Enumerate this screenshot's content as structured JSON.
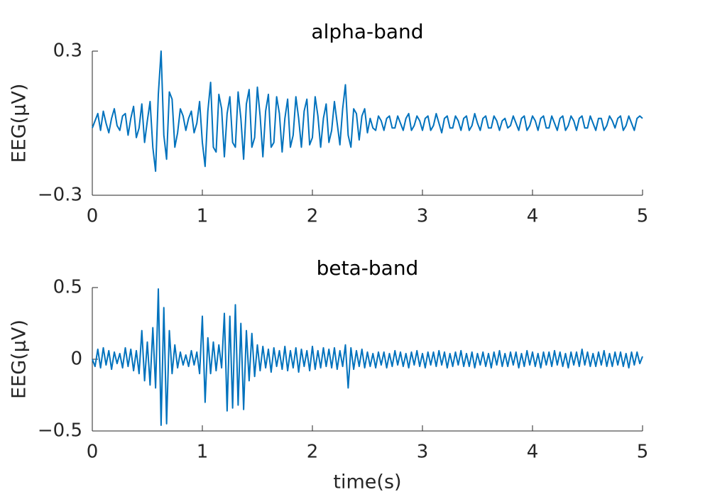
{
  "chart_data": [
    {
      "type": "line",
      "title": "alpha-band",
      "ylabel": "EEG(μV)",
      "color": "#0072bd",
      "xlim": [
        0,
        5
      ],
      "xticks": [
        0,
        1,
        2,
        3,
        4,
        5
      ],
      "ylim": [
        -0.3,
        0.3
      ],
      "yticks": [
        {
          "value": -0.3,
          "label": "−0.3"
        },
        0.3
      ],
      "x": [
        0,
        0.025,
        0.05,
        0.075,
        0.1,
        0.125,
        0.15,
        0.175,
        0.2,
        0.225,
        0.25,
        0.275,
        0.3,
        0.325,
        0.35,
        0.375,
        0.4,
        0.425,
        0.45,
        0.475,
        0.5,
        0.525,
        0.55,
        0.575,
        0.6,
        0.625,
        0.65,
        0.675,
        0.7,
        0.725,
        0.75,
        0.775,
        0.8,
        0.825,
        0.85,
        0.875,
        0.9,
        0.925,
        0.95,
        0.975,
        1,
        1.025,
        1.05,
        1.075,
        1.1,
        1.125,
        1.15,
        1.175,
        1.2,
        1.225,
        1.25,
        1.275,
        1.3,
        1.325,
        1.35,
        1.375,
        1.4,
        1.425,
        1.45,
        1.475,
        1.5,
        1.525,
        1.55,
        1.575,
        1.6,
        1.625,
        1.65,
        1.675,
        1.7,
        1.725,
        1.75,
        1.775,
        1.8,
        1.825,
        1.85,
        1.875,
        1.9,
        1.925,
        1.95,
        1.975,
        2,
        2.025,
        2.05,
        2.075,
        2.1,
        2.125,
        2.15,
        2.175,
        2.2,
        2.225,
        2.25,
        2.275,
        2.3,
        2.325,
        2.35,
        2.375,
        2.4,
        2.425,
        2.45,
        2.475,
        2.5,
        2.525,
        2.55,
        2.575,
        2.6,
        2.625,
        2.65,
        2.675,
        2.7,
        2.725,
        2.75,
        2.775,
        2.8,
        2.825,
        2.85,
        2.875,
        2.9,
        2.925,
        2.95,
        2.975,
        3,
        3.025,
        3.05,
        3.075,
        3.1,
        3.125,
        3.15,
        3.175,
        3.2,
        3.225,
        3.25,
        3.275,
        3.3,
        3.325,
        3.35,
        3.375,
        3.4,
        3.425,
        3.45,
        3.475,
        3.5,
        3.525,
        3.55,
        3.575,
        3.6,
        3.625,
        3.65,
        3.675,
        3.7,
        3.725,
        3.75,
        3.775,
        3.8,
        3.825,
        3.85,
        3.875,
        3.9,
        3.925,
        3.95,
        3.975,
        4,
        4.025,
        4.05,
        4.075,
        4.1,
        4.125,
        4.15,
        4.175,
        4.2,
        4.225,
        4.25,
        4.275,
        4.3,
        4.325,
        4.35,
        4.375,
        4.4,
        4.425,
        4.45,
        4.475,
        4.5,
        4.525,
        4.55,
        4.575,
        4.6,
        4.625,
        4.65,
        4.675,
        4.7,
        4.725,
        4.75,
        4.775,
        4.8,
        4.825,
        4.85,
        4.875,
        4.9,
        4.925,
        4.95,
        4.975,
        5
      ],
      "values": [
        -0.02,
        0.01,
        0.04,
        -0.03,
        0.05,
        0.0,
        -0.04,
        0.02,
        0.06,
        -0.01,
        -0.03,
        0.03,
        0.04,
        -0.05,
        0.02,
        0.07,
        -0.06,
        -0.02,
        0.08,
        -0.08,
        0.01,
        0.09,
        -0.1,
        -0.2,
        0.12,
        0.3,
        -0.05,
        -0.15,
        0.13,
        0.1,
        -0.1,
        -0.04,
        0.06,
        0.03,
        -0.03,
        0.02,
        0.05,
        -0.04,
        0.0,
        0.09,
        -0.08,
        -0.18,
        0.05,
        0.17,
        -0.1,
        -0.12,
        0.12,
        0.06,
        -0.14,
        0.04,
        0.11,
        -0.08,
        -0.1,
        0.13,
        0.02,
        -0.15,
        0.08,
        0.14,
        -0.1,
        -0.06,
        0.15,
        0.03,
        -0.14,
        0.05,
        0.12,
        -0.1,
        -0.08,
        0.11,
        0.04,
        -0.12,
        0.02,
        0.1,
        -0.1,
        -0.05,
        0.11,
        0.02,
        -0.1,
        0.05,
        0.1,
        -0.09,
        -0.06,
        0.11,
        0.03,
        -0.1,
        0.02,
        0.08,
        -0.08,
        -0.03,
        0.09,
        0.0,
        -0.09,
        0.06,
        0.16,
        -0.05,
        -0.1,
        0.06,
        0.04,
        -0.07,
        0.03,
        0.06,
        -0.04,
        0.02,
        -0.02,
        -0.03,
        0.03,
        0.01,
        -0.03,
        0.02,
        0.03,
        -0.02,
        -0.02,
        0.03,
        0.0,
        -0.03,
        0.02,
        0.04,
        -0.03,
        -0.01,
        0.03,
        0.01,
        -0.03,
        0.02,
        0.03,
        -0.03,
        -0.01,
        0.04,
        0.0,
        -0.04,
        0.02,
        0.03,
        -0.02,
        -0.02,
        0.03,
        0.01,
        -0.03,
        0.02,
        0.03,
        -0.03,
        -0.01,
        0.04,
        0.0,
        -0.03,
        0.02,
        0.03,
        -0.02,
        -0.02,
        0.03,
        0.01,
        -0.03,
        0.01,
        0.02,
        -0.02,
        -0.01,
        0.03,
        0.0,
        -0.03,
        0.02,
        0.03,
        -0.03,
        -0.01,
        0.03,
        0.01,
        -0.03,
        0.02,
        0.03,
        -0.02,
        -0.02,
        0.03,
        0.0,
        -0.03,
        0.02,
        0.03,
        -0.03,
        -0.01,
        0.03,
        0.01,
        -0.03,
        0.02,
        0.03,
        -0.02,
        -0.02,
        0.03,
        0.0,
        -0.03,
        0.02,
        0.02,
        -0.03,
        -0.01,
        0.03,
        0.01,
        -0.02,
        0.02,
        0.03,
        -0.03,
        -0.01,
        0.03,
        0.0,
        -0.03,
        0.02,
        0.03,
        0.02
      ]
    },
    {
      "type": "line",
      "title": "beta-band",
      "ylabel": "EEG(μV)",
      "xlabel": "time(s)",
      "color": "#0072bd",
      "xlim": [
        0,
        5
      ],
      "xticks": [
        0,
        1,
        2,
        3,
        4,
        5
      ],
      "ylim": [
        -0.5,
        0.5
      ],
      "yticks": [
        {
          "value": -0.5,
          "label": "−0.5"
        },
        0,
        0.5
      ],
      "x": [
        0,
        0.025,
        0.05,
        0.075,
        0.1,
        0.125,
        0.15,
        0.175,
        0.2,
        0.225,
        0.25,
        0.275,
        0.3,
        0.325,
        0.35,
        0.375,
        0.4,
        0.425,
        0.45,
        0.475,
        0.5,
        0.525,
        0.55,
        0.575,
        0.6,
        0.625,
        0.65,
        0.675,
        0.7,
        0.725,
        0.75,
        0.775,
        0.8,
        0.825,
        0.85,
        0.875,
        0.9,
        0.925,
        0.95,
        0.975,
        1,
        1.025,
        1.05,
        1.075,
        1.1,
        1.125,
        1.15,
        1.175,
        1.2,
        1.225,
        1.25,
        1.275,
        1.3,
        1.325,
        1.35,
        1.375,
        1.4,
        1.425,
        1.45,
        1.475,
        1.5,
        1.525,
        1.55,
        1.575,
        1.6,
        1.625,
        1.65,
        1.675,
        1.7,
        1.725,
        1.75,
        1.775,
        1.8,
        1.825,
        1.85,
        1.875,
        1.9,
        1.925,
        1.95,
        1.975,
        2,
        2.025,
        2.05,
        2.075,
        2.1,
        2.125,
        2.15,
        2.175,
        2.2,
        2.225,
        2.25,
        2.275,
        2.3,
        2.325,
        2.35,
        2.375,
        2.4,
        2.425,
        2.45,
        2.475,
        2.5,
        2.525,
        2.55,
        2.575,
        2.6,
        2.625,
        2.65,
        2.675,
        2.7,
        2.725,
        2.75,
        2.775,
        2.8,
        2.825,
        2.85,
        2.875,
        2.9,
        2.925,
        2.95,
        2.975,
        3,
        3.025,
        3.05,
        3.075,
        3.1,
        3.125,
        3.15,
        3.175,
        3.2,
        3.225,
        3.25,
        3.275,
        3.3,
        3.325,
        3.35,
        3.375,
        3.4,
        3.425,
        3.45,
        3.475,
        3.5,
        3.525,
        3.55,
        3.575,
        3.6,
        3.625,
        3.65,
        3.675,
        3.7,
        3.725,
        3.75,
        3.775,
        3.8,
        3.825,
        3.85,
        3.875,
        3.9,
        3.925,
        3.95,
        3.975,
        4,
        4.025,
        4.05,
        4.075,
        4.1,
        4.125,
        4.15,
        4.175,
        4.2,
        4.225,
        4.25,
        4.275,
        4.3,
        4.325,
        4.35,
        4.375,
        4.4,
        4.425,
        4.45,
        4.475,
        4.5,
        4.525,
        4.55,
        4.575,
        4.6,
        4.625,
        4.65,
        4.675,
        4.7,
        4.725,
        4.75,
        4.775,
        4.8,
        4.825,
        4.85,
        4.875,
        4.9,
        4.925,
        4.95,
        4.975,
        5
      ],
      "values": [
        0.0,
        -0.05,
        0.07,
        -0.06,
        0.08,
        -0.04,
        0.06,
        -0.07,
        0.05,
        -0.03,
        0.04,
        -0.06,
        0.08,
        -0.05,
        0.07,
        -0.08,
        0.06,
        -0.1,
        0.2,
        -0.15,
        0.12,
        -0.18,
        0.22,
        -0.2,
        0.49,
        -0.46,
        0.36,
        -0.45,
        0.2,
        -0.1,
        0.1,
        -0.06,
        0.05,
        -0.04,
        0.03,
        -0.05,
        0.06,
        -0.04,
        0.05,
        -0.1,
        0.3,
        -0.3,
        0.15,
        -0.1,
        0.12,
        -0.08,
        0.1,
        -0.06,
        0.32,
        -0.36,
        0.3,
        -0.34,
        0.38,
        -0.32,
        0.25,
        -0.35,
        0.2,
        -0.15,
        0.18,
        -0.12,
        0.1,
        -0.08,
        0.09,
        -0.06,
        0.07,
        -0.09,
        0.08,
        -0.05,
        0.06,
        -0.07,
        0.09,
        -0.08,
        0.06,
        -0.06,
        0.08,
        -0.09,
        0.07,
        -0.05,
        0.06,
        -0.08,
        0.09,
        -0.07,
        0.06,
        -0.06,
        0.08,
        -0.05,
        0.07,
        -0.06,
        0.08,
        -0.07,
        0.06,
        -0.05,
        0.1,
        -0.2,
        0.08,
        -0.07,
        0.06,
        -0.05,
        0.07,
        -0.06,
        0.05,
        -0.05,
        0.04,
        -0.06,
        0.05,
        -0.04,
        0.05,
        -0.06,
        0.04,
        -0.05,
        0.06,
        -0.04,
        0.05,
        -0.05,
        0.04,
        -0.06,
        0.05,
        -0.04,
        0.06,
        -0.05,
        0.04,
        -0.06,
        0.05,
        -0.04,
        0.05,
        -0.05,
        0.06,
        -0.04,
        0.05,
        -0.06,
        0.04,
        -0.05,
        0.05,
        -0.04,
        0.06,
        -0.05,
        0.04,
        -0.05,
        0.05,
        -0.06,
        0.04,
        -0.04,
        0.05,
        -0.05,
        0.04,
        -0.06,
        0.05,
        -0.04,
        0.06,
        -0.05,
        0.04,
        -0.05,
        0.05,
        -0.04,
        0.05,
        -0.06,
        0.04,
        -0.05,
        0.06,
        -0.04,
        0.05,
        -0.05,
        0.04,
        -0.06,
        0.05,
        -0.04,
        0.05,
        -0.05,
        0.06,
        -0.04,
        0.05,
        -0.05,
        0.04,
        -0.06,
        0.05,
        -0.04,
        0.05,
        -0.05,
        0.07,
        -0.04,
        0.05,
        -0.05,
        0.04,
        -0.05,
        0.05,
        -0.04,
        0.06,
        -0.05,
        0.04,
        -0.05,
        0.05,
        -0.04,
        0.05,
        -0.05,
        0.04,
        -0.06,
        0.05,
        -0.04,
        0.05,
        -0.03,
        0.02
      ]
    }
  ]
}
